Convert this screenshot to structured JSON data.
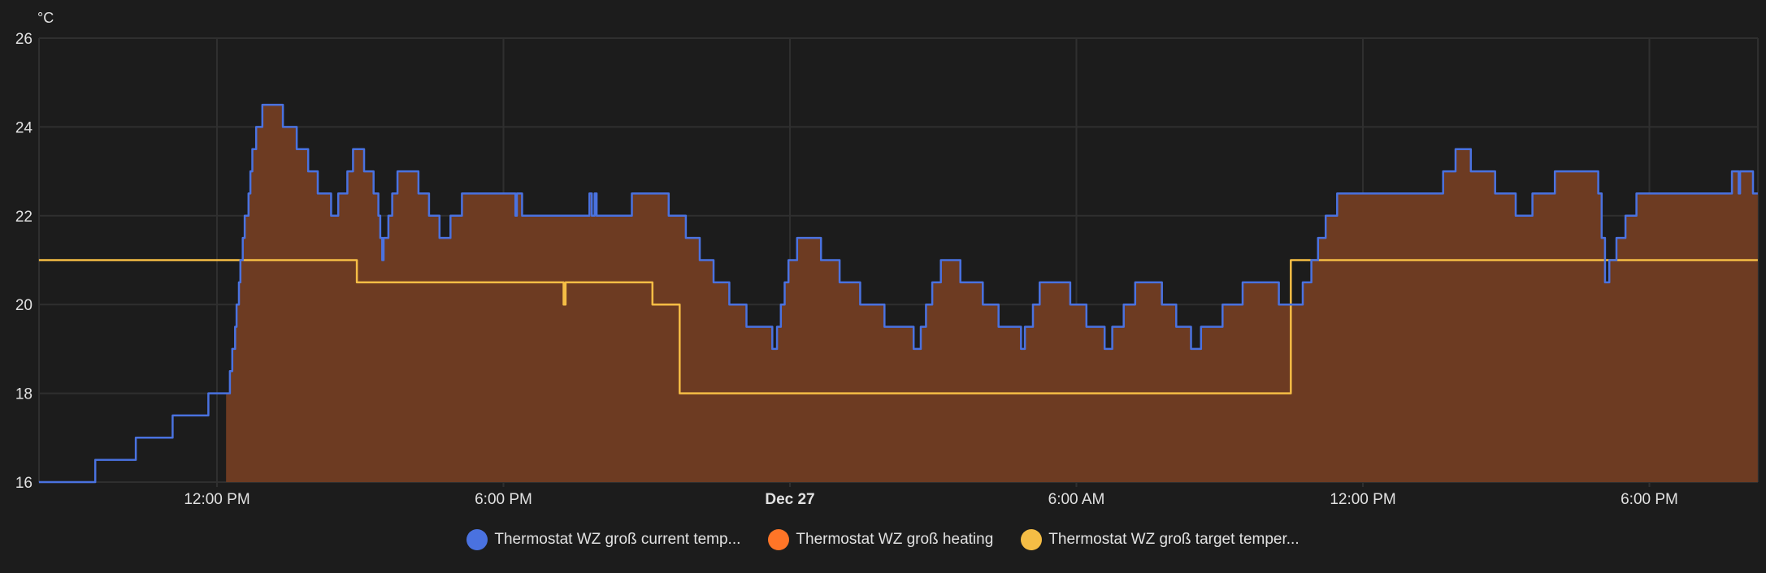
{
  "chart_data": {
    "type": "line",
    "y_unit": "°C",
    "ylim": [
      16,
      26
    ],
    "y_ticks": [
      "16",
      "18",
      "20",
      "22",
      "24",
      "26"
    ],
    "y_tick_values": [
      16,
      18,
      20,
      22,
      24,
      26
    ],
    "xlim_hours_from_first_noon": [
      -3.73,
      32.27
    ],
    "x_ticks": [
      {
        "label": "12:00 PM",
        "hours": 0,
        "bold": false
      },
      {
        "label": "6:00 PM",
        "hours": 6,
        "bold": false
      },
      {
        "label": "Dec 27",
        "hours": 12,
        "bold": true
      },
      {
        "label": "6:00 AM",
        "hours": 18,
        "bold": false
      },
      {
        "label": "12:00 PM",
        "hours": 24,
        "bold": false
      },
      {
        "label": "6:00 PM",
        "hours": 30,
        "bold": false
      }
    ],
    "grid": true,
    "legend_position": "bottom-center",
    "series": [
      {
        "name": "Thermostat WZ groß current temp...",
        "color": "#4a72e0",
        "step": true,
        "points": [
          [
            -3.73,
            16
          ],
          [
            -2.55,
            16.5
          ],
          [
            -1.7,
            17
          ],
          [
            -0.93,
            17.5
          ],
          [
            -0.18,
            18
          ],
          [
            0.27,
            18.5
          ],
          [
            0.32,
            19
          ],
          [
            0.38,
            19.5
          ],
          [
            0.41,
            20
          ],
          [
            0.46,
            20.5
          ],
          [
            0.49,
            21
          ],
          [
            0.54,
            21.5
          ],
          [
            0.58,
            22
          ],
          [
            0.66,
            22.5
          ],
          [
            0.7,
            23
          ],
          [
            0.74,
            23.5
          ],
          [
            0.82,
            24
          ],
          [
            0.95,
            24.5
          ],
          [
            1.38,
            24
          ],
          [
            1.67,
            23.5
          ],
          [
            1.91,
            23
          ],
          [
            2.11,
            22.5
          ],
          [
            2.39,
            22
          ],
          [
            2.54,
            22.5
          ],
          [
            2.73,
            23
          ],
          [
            2.85,
            23.5
          ],
          [
            3.08,
            23
          ],
          [
            3.28,
            22.5
          ],
          [
            3.38,
            22
          ],
          [
            3.42,
            21.5
          ],
          [
            3.46,
            21
          ],
          [
            3.49,
            21.5
          ],
          [
            3.59,
            22
          ],
          [
            3.67,
            22.5
          ],
          [
            3.78,
            23
          ],
          [
            4.22,
            22.5
          ],
          [
            4.44,
            22
          ],
          [
            4.66,
            21.5
          ],
          [
            4.89,
            22
          ],
          [
            5.13,
            22.5
          ],
          [
            6.25,
            22
          ],
          [
            6.28,
            22.5
          ],
          [
            6.39,
            22
          ],
          [
            7.8,
            22.5
          ],
          [
            7.85,
            22
          ],
          [
            7.91,
            22.5
          ],
          [
            7.95,
            22
          ],
          [
            8.69,
            22.5
          ],
          [
            9.46,
            22
          ],
          [
            9.82,
            21.5
          ],
          [
            10.11,
            21
          ],
          [
            10.4,
            20.5
          ],
          [
            10.73,
            20
          ],
          [
            11.09,
            19.5
          ],
          [
            11.63,
            19
          ],
          [
            11.73,
            19.5
          ],
          [
            11.81,
            20
          ],
          [
            11.89,
            20.5
          ],
          [
            11.97,
            21
          ],
          [
            12.15,
            21.5
          ],
          [
            12.65,
            21
          ],
          [
            13.04,
            20.5
          ],
          [
            13.47,
            20
          ],
          [
            13.98,
            19.5
          ],
          [
            14.59,
            19
          ],
          [
            14.74,
            19.5
          ],
          [
            14.85,
            20
          ],
          [
            14.98,
            20.5
          ],
          [
            15.16,
            21
          ],
          [
            15.57,
            20.5
          ],
          [
            16.04,
            20
          ],
          [
            16.37,
            19.5
          ],
          [
            16.84,
            19
          ],
          [
            16.92,
            19.5
          ],
          [
            17.09,
            20
          ],
          [
            17.23,
            20.5
          ],
          [
            17.87,
            20
          ],
          [
            18.21,
            19.5
          ],
          [
            18.59,
            19
          ],
          [
            18.75,
            19.5
          ],
          [
            18.99,
            20
          ],
          [
            19.23,
            20.5
          ],
          [
            19.79,
            20
          ],
          [
            20.09,
            19.5
          ],
          [
            20.4,
            19
          ],
          [
            20.61,
            19.5
          ],
          [
            21.06,
            20
          ],
          [
            21.48,
            20.5
          ],
          [
            22.24,
            20
          ],
          [
            22.74,
            20.5
          ],
          [
            22.92,
            21
          ],
          [
            23.06,
            21.5
          ],
          [
            23.22,
            22
          ],
          [
            23.46,
            22.5
          ],
          [
            25.68,
            23
          ],
          [
            25.94,
            23.5
          ],
          [
            26.26,
            23
          ],
          [
            26.77,
            22.5
          ],
          [
            27.2,
            22
          ],
          [
            27.55,
            22.5
          ],
          [
            28.02,
            23
          ],
          [
            28.93,
            22.5
          ],
          [
            29.0,
            21.5
          ],
          [
            29.07,
            20.5
          ],
          [
            29.16,
            21
          ],
          [
            29.31,
            21.5
          ],
          [
            29.5,
            22
          ],
          [
            29.73,
            22.5
          ],
          [
            31.73,
            23
          ],
          [
            31.87,
            22.5
          ],
          [
            31.9,
            23
          ],
          [
            32.17,
            22.5
          ],
          [
            32.27,
            22.5
          ]
        ]
      },
      {
        "name": "Thermostat WZ groß heating",
        "color": "#ff7527",
        "fill_color": "#6d3b22",
        "active_ranges_hours": [
          [
            0.19,
            32.27
          ]
        ]
      },
      {
        "name": "Thermostat WZ groß target temper...",
        "color": "#f5bd45",
        "step": true,
        "points": [
          [
            -3.73,
            21
          ],
          [
            2.93,
            20.5
          ],
          [
            7.26,
            20
          ],
          [
            7.3,
            20.5
          ],
          [
            9.12,
            20
          ],
          [
            9.69,
            18
          ],
          [
            22.49,
            21
          ],
          [
            32.27,
            21
          ]
        ]
      }
    ]
  }
}
